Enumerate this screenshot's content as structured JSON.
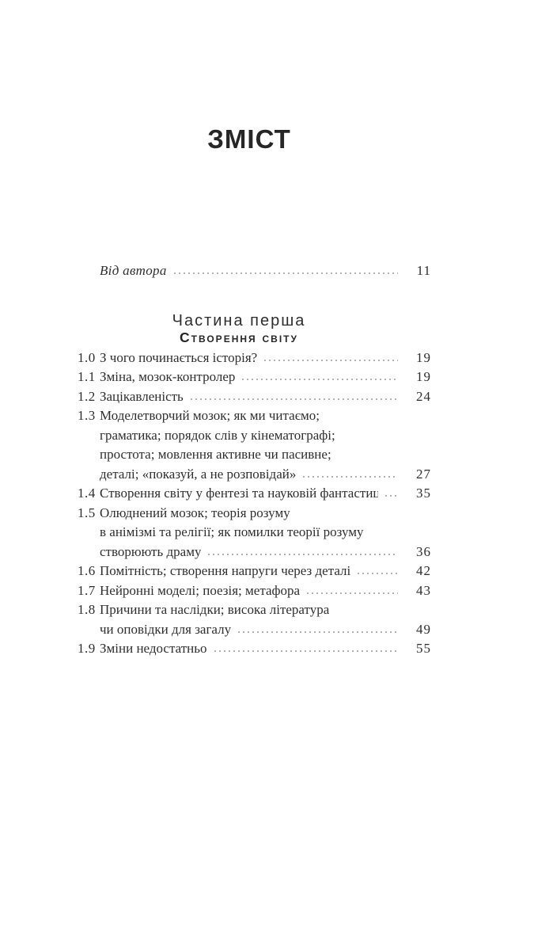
{
  "toc": {
    "title": "ЗМІСТ",
    "preface": {
      "label": "Від автора",
      "page": "11"
    },
    "part": {
      "kicker": "Частина перша",
      "title": "Створення світу"
    },
    "entries": [
      {
        "num": "1.0",
        "lines": [
          "З чого починається історія?"
        ],
        "page": "19"
      },
      {
        "num": "1.1",
        "lines": [
          "Зміна, мозок-контролер"
        ],
        "page": "19"
      },
      {
        "num": "1.2",
        "lines": [
          "Зацікавленість"
        ],
        "page": "24"
      },
      {
        "num": "1.3",
        "lines": [
          "Моделетворчий мозок; як ми читаємо;",
          "граматика; порядок слів у кінематографі;",
          "простота; мовлення активне чи пасивне;",
          "деталі; «показуй, а не розповідай»"
        ],
        "page": "27"
      },
      {
        "num": "1.4",
        "lines": [
          "Створення світу у фентезі та науковій фантастиці"
        ],
        "page": "35"
      },
      {
        "num": "1.5",
        "lines": [
          "Олюднений мозок; теорія розуму",
          "в анімізмі та релігії; як помилки теорії розуму",
          "створюють драму"
        ],
        "page": "36"
      },
      {
        "num": "1.6",
        "lines": [
          "Помітність; створення напруги через деталі"
        ],
        "page": "42"
      },
      {
        "num": "1.7",
        "lines": [
          "Нейронні моделі; поезія; метафора"
        ],
        "page": "43"
      },
      {
        "num": "1.8",
        "lines": [
          "Причини та наслідки; висока література",
          "чи оповідки для загалу"
        ],
        "page": "49"
      },
      {
        "num": "1.9",
        "lines": [
          "Зміни недостатньо"
        ],
        "page": "55"
      }
    ],
    "colors": {
      "text": "#2f2f2f",
      "leader_dots": "#b3b3b3",
      "background": "#ffffff"
    }
  }
}
